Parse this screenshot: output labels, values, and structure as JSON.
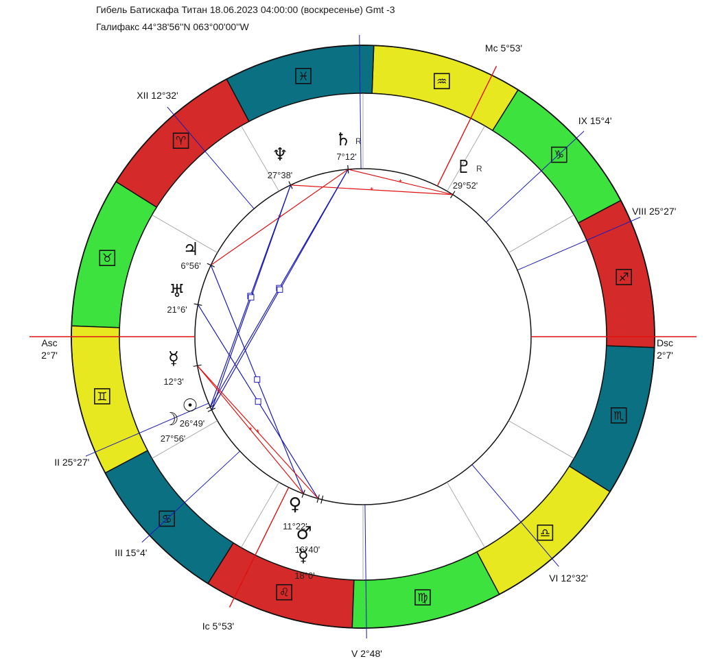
{
  "header": {
    "line1": "Гибель Батискафа Титан 18.06.2023 04:00:00 (воскресенье) Gmt -3",
    "line2": "Галифакс 44°38'56''N 063°00'00''W"
  },
  "colors": {
    "fire": "#d42a2a",
    "earth": "#3ee23e",
    "air": "#e8e820",
    "water": "#0c7083",
    "axis": "#e01010",
    "cusp": "#1a1ab8",
    "aspect_hard": "#1a1ab8",
    "aspect_soft": "#e01010"
  },
  "zodiac": [
    {
      "sign": "aries",
      "glyph": "♈",
      "element": "fire"
    },
    {
      "sign": "taurus",
      "glyph": "♉",
      "element": "earth"
    },
    {
      "sign": "gemini",
      "glyph": "♊",
      "element": "air"
    },
    {
      "sign": "cancer",
      "glyph": "♋",
      "element": "water"
    },
    {
      "sign": "leo",
      "glyph": "♌",
      "element": "fire"
    },
    {
      "sign": "virgo",
      "glyph": "♍",
      "element": "earth"
    },
    {
      "sign": "libra",
      "glyph": "♎",
      "element": "air"
    },
    {
      "sign": "scorpio",
      "glyph": "♏",
      "element": "water"
    },
    {
      "sign": "sagittarius",
      "glyph": "♐",
      "element": "fire"
    },
    {
      "sign": "capricorn",
      "glyph": "♑",
      "element": "earth"
    },
    {
      "sign": "aquarius",
      "glyph": "♒",
      "element": "air"
    },
    {
      "sign": "pisces",
      "glyph": "♓",
      "element": "water"
    }
  ],
  "axes": [
    {
      "name": "asc",
      "label": "Asc",
      "value": "2°7'",
      "lon": 62.12
    },
    {
      "name": "dsc",
      "label": "Dsc",
      "value": "2°7'",
      "lon": 242.12
    },
    {
      "name": "mc",
      "label": "Mc 5°53'",
      "value": "",
      "lon": 305.88
    },
    {
      "name": "ic",
      "label": "Ic 5°53'",
      "value": "",
      "lon": 125.88
    }
  ],
  "cusps": [
    {
      "name": "II",
      "label": "II 25°27'",
      "lon": 85.45
    },
    {
      "name": "III",
      "label": "III 15°4'",
      "lon": 105.07
    },
    {
      "name": "V",
      "label": "V 2°48'",
      "lon": 152.8
    },
    {
      "name": "VI",
      "label": "VI 12°32'",
      "lon": 192.53
    },
    {
      "name": "VIII",
      "label": "VIII 25°27'",
      "lon": 265.45
    },
    {
      "name": "IX",
      "label": "IX 15°4'",
      "lon": 285.07
    },
    {
      "name": "XI",
      "label": "",
      "lon": 332.8
    },
    {
      "name": "XII",
      "label": "XII 12°32'",
      "lon": 12.53
    }
  ],
  "planets": [
    {
      "name": "saturn",
      "glyph": "♄",
      "deg": "7°12'",
      "retro": "R",
      "lon": 337.2
    },
    {
      "name": "neptune",
      "glyph": "♆",
      "deg": "27°38'",
      "retro": "",
      "lon": 357.63
    },
    {
      "name": "pluto",
      "glyph": "♇",
      "deg": "29°52'",
      "retro": "R",
      "lon": 299.87
    },
    {
      "name": "jupiter",
      "glyph": "♃",
      "deg": "6°56'",
      "retro": "",
      "lon": 36.93
    },
    {
      "name": "uranus",
      "glyph": "♅",
      "deg": "21°6'",
      "retro": "",
      "lon": 51.1
    },
    {
      "name": "mercury",
      "glyph": "☿",
      "deg": "12°3'",
      "retro": "",
      "lon": 72.05
    },
    {
      "name": "sun",
      "glyph": "☉",
      "deg": "26°49'",
      "retro": "",
      "lon": 86.82
    },
    {
      "name": "moon",
      "glyph": "☽",
      "deg": "27°56'",
      "retro": "",
      "lon": 87.93
    },
    {
      "name": "venus",
      "glyph": "♀",
      "deg": "11°22'",
      "retro": "",
      "lon": 131.37
    },
    {
      "name": "mars",
      "glyph": "♂",
      "deg": "16°40'",
      "retro": "",
      "lon": 136.67
    },
    {
      "name": "mercury-2",
      "glyph": "☿",
      "deg": "18°0'",
      "retro": "",
      "lon": 138.0
    }
  ],
  "aspects": [
    {
      "from": "saturn",
      "to": "pluto",
      "kind": "sextile",
      "color": "red",
      "marker": "*"
    },
    {
      "from": "neptune",
      "to": "pluto",
      "kind": "sextile",
      "color": "red",
      "marker": "*"
    },
    {
      "from": "jupiter",
      "to": "saturn",
      "kind": "sextile",
      "color": "red",
      "marker": "*"
    },
    {
      "from": "saturn",
      "to": "sun",
      "kind": "square",
      "color": "blue",
      "marker": "□"
    },
    {
      "from": "saturn",
      "to": "moon",
      "kind": "square",
      "color": "blue",
      "marker": "□"
    },
    {
      "from": "neptune",
      "to": "sun",
      "kind": "square",
      "color": "blue",
      "marker": "□"
    },
    {
      "from": "neptune",
      "to": "moon",
      "kind": "square",
      "color": "blue",
      "marker": "□"
    },
    {
      "from": "jupiter",
      "to": "venus",
      "kind": "square",
      "color": "blue",
      "marker": "□"
    },
    {
      "from": "uranus",
      "to": "mars",
      "kind": "square",
      "color": "blue",
      "marker": "□"
    },
    {
      "from": "mercury",
      "to": "venus",
      "kind": "sextile",
      "color": "red",
      "marker": "*"
    },
    {
      "from": "mercury",
      "to": "mars",
      "kind": "sextile",
      "color": "red",
      "marker": "*"
    }
  ]
}
